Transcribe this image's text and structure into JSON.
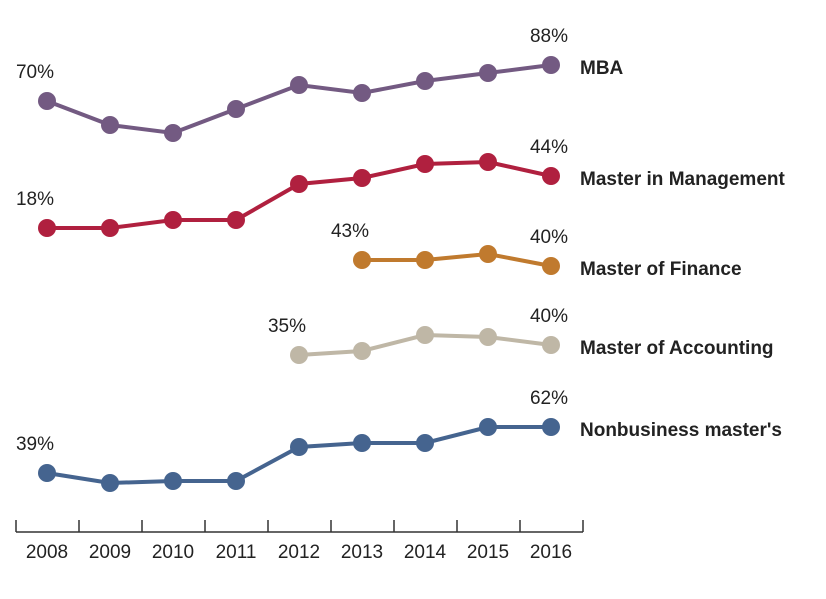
{
  "chart_data": {
    "type": "line",
    "categories": [
      "2008",
      "2009",
      "2010",
      "2011",
      "2012",
      "2013",
      "2014",
      "2015",
      "2016"
    ],
    "series": [
      {
        "name": "MBA",
        "color": "#735a82",
        "values": [
          70,
          58,
          54,
          66,
          78,
          74,
          80,
          84,
          88
        ],
        "value_labels": [
          "70%",
          null,
          null,
          null,
          null,
          null,
          null,
          null,
          "88%"
        ]
      },
      {
        "name": "Master in Management",
        "color": "#b0203f",
        "values": [
          18,
          18,
          22,
          22,
          40,
          43,
          50,
          51,
          44
        ],
        "value_labels": [
          "18%",
          null,
          null,
          null,
          null,
          null,
          null,
          null,
          "44%"
        ]
      },
      {
        "name": "Master of Finance",
        "color": "#c07a2e",
        "values": [
          null,
          null,
          null,
          null,
          null,
          43,
          43,
          46,
          40
        ],
        "value_labels": [
          null,
          null,
          null,
          null,
          null,
          "43%",
          null,
          null,
          "40%"
        ]
      },
      {
        "name": "Master of Accounting",
        "color": "#bfb7a6",
        "values": [
          null,
          null,
          null,
          null,
          35,
          37,
          45,
          44,
          40
        ],
        "value_labels": [
          null,
          null,
          null,
          null,
          "35%",
          null,
          null,
          null,
          "40%"
        ]
      },
      {
        "name": "Nonbusiness master's",
        "color": "#45648f",
        "values": [
          39,
          34,
          35,
          35,
          52,
          54,
          54,
          62,
          62
        ],
        "value_labels": [
          "39%",
          null,
          null,
          null,
          null,
          null,
          null,
          null,
          "62%"
        ]
      }
    ]
  }
}
